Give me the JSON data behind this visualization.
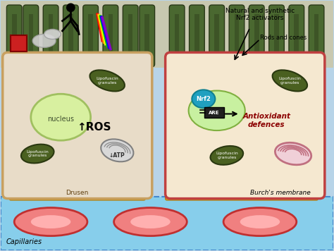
{
  "fig_width": 4.74,
  "fig_height": 3.56,
  "dpi": 100,
  "bg_color": "#b8d4e8",
  "cell1_bg": "#e8dcc8",
  "cell2_bg": "#f5e8d0",
  "cell_border": "#c8a060",
  "cell2_border": "#c04040",
  "nucleus_color": "#d8f0a0",
  "nucleus_border": "#a0c060",
  "lipofuscin_color": "#4a6020",
  "lipofuscin_text": "white",
  "rods_color": "#4a6830",
  "rods_dark": "#2a3818",
  "capillary_fill": "#f08080",
  "capillary_border": "#c03030",
  "drusen_color": "#e0a020",
  "membrane_color": "#87ceeb",
  "membrane_border": "#4488cc",
  "nrf2_color": "#20a0c0",
  "are_color": "#202020",
  "mito_color": "#d0d0d0",
  "mito_stripe": "#c07080",
  "text_annotations": {
    "ros": "↑ROS",
    "atp": "↓ATP",
    "nucleus": "nucleus",
    "drusen": "Drusen",
    "capillaries": "Capillaries",
    "burches": "Burch's membrane",
    "rods_cones": "Rods and cones",
    "nrf2_activators": "Natural and synthetic\nNrf2 activators",
    "antioxidant": "Antioxidant\ndefences",
    "nrf2": "Nrf2",
    "are": "ARE"
  },
  "lipofuscin_label": "Lipofuscin\ngranules"
}
